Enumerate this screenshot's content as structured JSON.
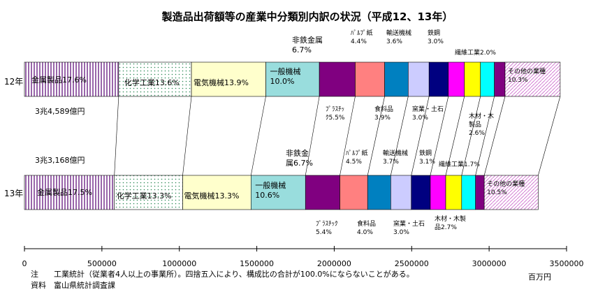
{
  "chart_data": {
    "type": "bar",
    "orientation": "horizontal",
    "stacked": true,
    "title": "製造品出荷額等の産業中分類別内訳の状況（平成12、13年）",
    "xunit": "百万円",
    "xlim": [
      0,
      3500000
    ],
    "xticks": [
      0,
      500000,
      1000000,
      1500000,
      2000000,
      2500000,
      3000000,
      3500000
    ],
    "xtick_labels": [
      "0",
      "500000",
      "1000000",
      "1500000",
      "2000000",
      "2500000",
      "3000000",
      "3500000"
    ],
    "grid": false,
    "legend": "none",
    "rows": [
      {
        "label": "12年",
        "total_label": "3兆4,589億円",
        "segments": [
          {
            "name": "金属製品",
            "pct": 17.6,
            "color": "#cc99cc",
            "pattern": "vstripe"
          },
          {
            "name": "化学工業",
            "pct": 13.6,
            "color": "#ffffff",
            "pattern": "dots"
          },
          {
            "name": "電気機械",
            "pct": 13.9,
            "color": "#ffffcc"
          },
          {
            "name": "一般機械",
            "pct": 10.0,
            "color": "#99dddd"
          },
          {
            "name": "非鉄金属",
            "pct": 6.7,
            "color": "#800080"
          },
          {
            "name": "プラスチック",
            "pct": 5.5,
            "color": "#ff8080"
          },
          {
            "name": "パルプ・紙",
            "pct": 4.4,
            "color": "#0080c0"
          },
          {
            "name": "食料品",
            "pct": 3.9,
            "color": "#ccccff"
          },
          {
            "name": "輸送機械",
            "pct": 3.6,
            "color": "#000080"
          },
          {
            "name": "窯業・土石",
            "pct": 3.0,
            "color": "#ff00ff"
          },
          {
            "name": "鉄鋼",
            "pct": 3.0,
            "color": "#ffff00"
          },
          {
            "name": "木材・木製品",
            "pct": 2.6,
            "color": "#00ffff"
          },
          {
            "name": "繊維工業",
            "pct": 2.0,
            "color": "#800080"
          },
          {
            "name": "その他の業種",
            "pct": 10.3,
            "color": "#ffffff",
            "pattern": "diag"
          }
        ]
      },
      {
        "label": "13年",
        "total_label": "3兆3,168億円",
        "segments": [
          {
            "name": "金属製品",
            "pct": 17.5,
            "color": "#cc99cc",
            "pattern": "vstripe"
          },
          {
            "name": "化学工業",
            "pct": 13.3,
            "color": "#ffffff",
            "pattern": "dots"
          },
          {
            "name": "電気機械",
            "pct": 13.3,
            "color": "#ffffcc"
          },
          {
            "name": "一般機械",
            "pct": 10.6,
            "color": "#99dddd"
          },
          {
            "name": "非鉄金属",
            "pct": 6.7,
            "color": "#800080"
          },
          {
            "name": "プラスチック",
            "pct": 5.4,
            "color": "#ff8080"
          },
          {
            "name": "パルプ・紙",
            "pct": 4.5,
            "color": "#0080c0"
          },
          {
            "name": "食料品",
            "pct": 4.0,
            "color": "#ccccff"
          },
          {
            "name": "輸送機械",
            "pct": 3.7,
            "color": "#000080"
          },
          {
            "name": "窯業・土石",
            "pct": 3.0,
            "color": "#ff00ff"
          },
          {
            "name": "鉄鋼",
            "pct": 3.1,
            "color": "#ffff00"
          },
          {
            "name": "木材・木製品",
            "pct": 2.7,
            "color": "#00ffff"
          },
          {
            "name": "繊維工業",
            "pct": 1.7,
            "color": "#800080"
          },
          {
            "name": "その他の業種",
            "pct": 10.5,
            "color": "#ffffff",
            "pattern": "diag"
          }
        ]
      }
    ],
    "segment_labels": {
      "12年": [
        "金属製品17.6%",
        "化学工業13.6%",
        "電気機械13.9%",
        "一般機械\n10.0%",
        "非鉄金属\n6.7%",
        "ﾌﾟﾗｽﾁｯ\nｸ5.5%",
        "ﾊﾟﾙﾌﾟ紙\n4.4%",
        "食料品\n3.9%",
        "輸送機械\n3.6%",
        "窯業・土石\n3.0%",
        "鉄鋼\n3.0%",
        "木材・木\n製品\n2.6%",
        "繊維工業2.0%",
        "その他の業種\n10.3%"
      ],
      "13年": [
        "金属製品17.5%",
        "化学工業13.3%",
        "電気機械13.3%",
        "一般機械\n10.6%",
        "非鉄金\n属6.7%",
        "ﾌﾟﾗｽﾁｯｸ\n5.4%",
        "ﾊﾟﾙﾌﾟ紙\n4.5%",
        "食料品\n4.0%",
        "輸送機械\n3.7%",
        "窯業・土石\n3.0%",
        "鉄鋼\n3.1%",
        "木材・木製\n品2.7%",
        "繊維工業1.7%",
        "その他の業種\n10.5%"
      ]
    }
  },
  "notes": [
    "注　　工業統計（従業者4人以上の事業所）。四捨五入により、構成比の合計が100.0%にならないことがある。",
    "資料　富山県統計調査課"
  ]
}
